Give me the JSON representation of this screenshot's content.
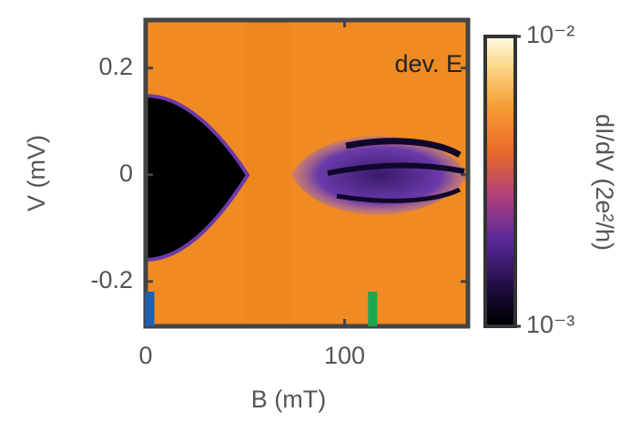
{
  "chart_data": {
    "type": "heatmap",
    "xlabel": "B (mT)",
    "ylabel": "V (mV)",
    "xlim": [
      0,
      162
    ],
    "xticks": [
      0,
      100
    ],
    "ylim": [
      -0.284,
      0.29
    ],
    "yticks": [
      -0.2,
      0,
      0.2
    ],
    "annotation": "dev. E",
    "markers": [
      {
        "x": 0,
        "color": "#1f5fb0"
      },
      {
        "x": 112,
        "color": "#1ea552"
      }
    ],
    "colorbar": {
      "label": "dI/dV (2e²/h)",
      "scale": "log",
      "lim": [
        0.001,
        0.01
      ],
      "ticks": [
        {
          "value": 0.001,
          "label": "10⁻³"
        },
        {
          "value": 0.01,
          "label": "10⁻²"
        }
      ]
    }
  }
}
